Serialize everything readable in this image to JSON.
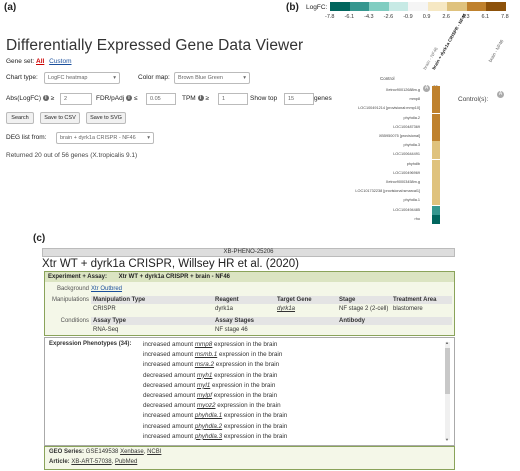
{
  "panels": {
    "a": "(a)",
    "b": "(b)",
    "c": "(c)"
  },
  "viewer": {
    "title": "Differentially Expressed Gene Data Viewer",
    "gene_set_label": "Gene set:",
    "gene_set_all": "All",
    "gene_set_custom": "Custom",
    "chart_type_label": "Chart type:",
    "chart_type_value": "LogFC heatmap",
    "color_map_label": "Color map:",
    "color_map_value": "Brown Blue Green",
    "abs_logfc_label": "Abs(LogFC)",
    "geq": "≥",
    "abs_logfc_value": "2",
    "fdr_label": "FDR/pAdj",
    "leq": "≤",
    "fdr_value": "0.05",
    "tpm_label": "TPM",
    "tpm_value": "1",
    "show_top_label": "Show top",
    "show_top_value": "15",
    "genes_label": "genes",
    "search_button": "Search",
    "save_csv_button": "Save to CSV",
    "save_svg_button": "Save to SVG",
    "deg_list_label": "DEG list from:",
    "deg_list_value": "brain + dyrk1a CRISPR - NF46",
    "result_text": "Returned 20 out of 56 genes (X.tropicalis 9.1)"
  },
  "heatmap": {
    "legend_label": "LogFC:",
    "legend_ticks": [
      "-7.8",
      "-6.1",
      "-4.3",
      "-2.6",
      "-0.9",
      "0.9",
      "2.6",
      "4.3",
      "6.1",
      "7.8"
    ],
    "legend_colors": [
      "#01665e",
      "#35978f",
      "#80cdc1",
      "#c7eae5",
      "#f5f5f5",
      "#f6e8c3",
      "#dfc27d",
      "#bf812d",
      "#8c510a"
    ],
    "column_headers": [
      "brain - NF46",
      "brain + dyrk1a CRISPR - NF46"
    ],
    "control_label": "Control",
    "controls_label": "Control(s):",
    "controls_column": "brain - NF46",
    "genes": [
      "Xetrov90012688m.g",
      "mmp8",
      "LOC100491214 [provisional:mmp10]",
      "phyhdla.2",
      "LOC100487369",
      "XB5950075 [provisional]",
      "phyhdla.3",
      "LOC100644491",
      "phyhdlb",
      "LOC100496969",
      "Xetrov90003458m.g",
      "LOC101732238 [provisional:smarcal1]",
      "phyhdla.1",
      "LOC100494485",
      "rho"
    ],
    "values": [
      6.0,
      5.5,
      5.2,
      4.9,
      4.7,
      4.4,
      4.2,
      4.0,
      3.8,
      3.6,
      3.4,
      3.2,
      3.0,
      -5.5,
      -6.8
    ]
  },
  "record": {
    "id": "XB-PHENO-25206",
    "title": "Xtr WT + dyrk1a CRISPR, Willsey HR et al. (2020)",
    "experiment_label": "Experiment + Assay:",
    "experiment_value": "Xtr WT + dyrk1a CRISPR + brain - NF46",
    "background_label": "Background",
    "background_value": "Xtr Outbred",
    "manipulations_label": "Manipulations",
    "manip_headers": [
      "Manipulation Type",
      "Reagent",
      "Target Gene",
      "Stage",
      "Treatment Area"
    ],
    "manip_row": [
      "CRISPR",
      "dyrk1a",
      "dyrk1a",
      "NF stage 2 (2-cell)",
      "blastomere"
    ],
    "conditions_label": "Conditions",
    "cond_headers": [
      "Assay Type",
      "Assay Stages",
      "Antibody"
    ],
    "cond_row": [
      "RNA-Seq",
      "NF stage 46",
      ""
    ],
    "phenotypes_label": "Expression Phenotypes (34):",
    "phenotypes": [
      {
        "pre": "increased amount ",
        "gene": "mmp8",
        "post": " expression in the brain"
      },
      {
        "pre": "increased amount ",
        "gene": "msmb.1",
        "post": " expression in the brain"
      },
      {
        "pre": "increased amount ",
        "gene": "msra.2",
        "post": " expression in the brain"
      },
      {
        "pre": "decreased amount ",
        "gene": "myh1",
        "post": " expression in the brain"
      },
      {
        "pre": "decreased amount ",
        "gene": "myl1",
        "post": " expression in the brain"
      },
      {
        "pre": "decreased amount ",
        "gene": "mylpf",
        "post": " expression in the brain"
      },
      {
        "pre": "decreased amount ",
        "gene": "myoz2",
        "post": " expression in the brain"
      },
      {
        "pre": "increased amount ",
        "gene": "phyhdla.1",
        "post": " expression in the brain"
      },
      {
        "pre": "increased amount ",
        "gene": "phyhdla.2",
        "post": " expression in the brain"
      },
      {
        "pre": "increased amount ",
        "gene": "phyhdla.3",
        "post": " expression in the brain"
      }
    ],
    "geo_label": "GEO Series:",
    "geo_id": "GSE149538",
    "geo_link1": "Xenbase",
    "geo_link2": "NCBI",
    "article_label": "Article:",
    "article_id": "XB-ART-57038",
    "article_link": "PubMed"
  }
}
